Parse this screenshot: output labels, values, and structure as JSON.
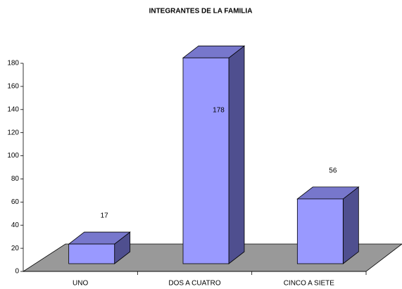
{
  "chart_data": {
    "type": "bar3d",
    "title": "INTEGRANTES DE LA FAMILIA",
    "categories": [
      "UNO",
      "DOS A CUATRO",
      "CINCO A SIETE"
    ],
    "values": [
      17,
      178,
      56
    ],
    "color": "#9999ff",
    "ylim": [
      0,
      180
    ],
    "yticks": [
      0,
      20,
      40,
      60,
      80,
      100,
      120,
      140,
      160,
      180
    ]
  }
}
